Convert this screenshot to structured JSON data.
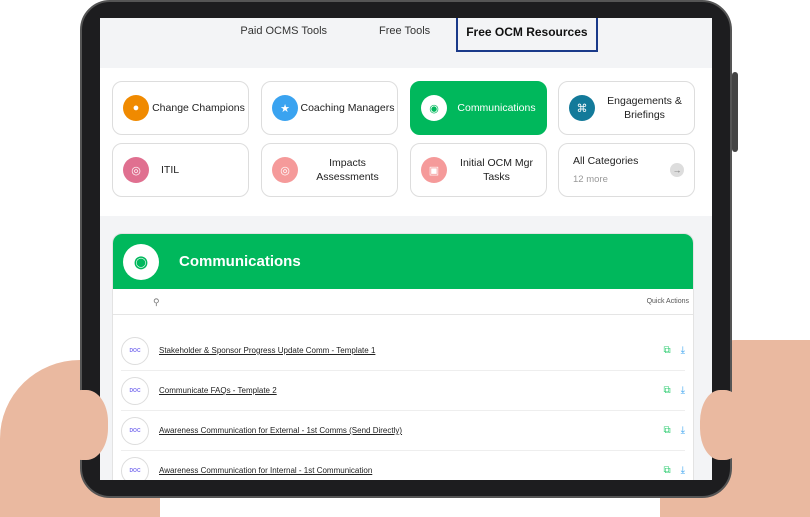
{
  "tabs": [
    {
      "label": "Paid OCMS Tools"
    },
    {
      "label": "Free Tools"
    },
    {
      "label": "Free OCM Resources",
      "active": true
    }
  ],
  "categories": [
    {
      "label": "Change Champions",
      "icon": "user-shield-icon",
      "color": "#f08a00"
    },
    {
      "label": "Coaching Managers",
      "icon": "star-icon",
      "color": "#3aa3f0"
    },
    {
      "label": "Communications",
      "icon": "chat-icon",
      "color": "#00b85c",
      "selected": true
    },
    {
      "label": "Engagements & Briefings",
      "icon": "network-icon",
      "color": "#137a9a"
    },
    {
      "label": "ITIL",
      "icon": "globe-icon",
      "color": "#e07090"
    },
    {
      "label": "Impacts Assessments",
      "icon": "target-icon",
      "color": "#f59a9a"
    },
    {
      "label": "Initial OCM Mgr Tasks",
      "icon": "presentation-icon",
      "color": "#f59a9a"
    },
    {
      "label": "All Categories",
      "sub": "12 more",
      "icon": "arrow-right-icon"
    }
  ],
  "section": {
    "title": "Communications",
    "quick_actions": "Quick Actions",
    "doc_badge": "DOC"
  },
  "items": [
    {
      "title": "Stakeholder & Sponsor Progress Update Comm - Template 1"
    },
    {
      "title": "Communicate FAQs - Template 2"
    },
    {
      "title": "Awareness Communication for External - 1st Comms (Send Directly)"
    },
    {
      "title": "Awareness Communication for Internal - 1st Communication"
    }
  ],
  "colors": {
    "accent": "#00b85c",
    "tab_border": "#1a3a8a",
    "copy": "#2ecc71",
    "download": "#3aa3f0"
  }
}
